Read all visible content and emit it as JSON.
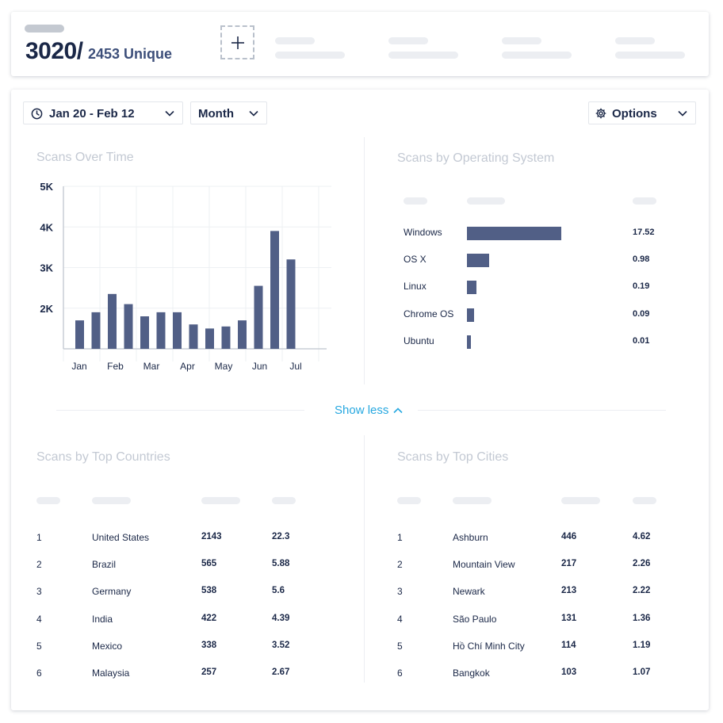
{
  "summary": {
    "total": "3020/",
    "unique": "2453 Unique"
  },
  "filters": {
    "date_range": "Jan 20 - Feb 12",
    "granularity": "Month",
    "options_label": "Options"
  },
  "scans_over_time": {
    "title": "Scans Over Time",
    "chart_data": {
      "type": "bar",
      "y_ticks": [
        "5K",
        "4K",
        "3K",
        "2K"
      ],
      "x_ticks": [
        "Jan",
        "Feb",
        "Mar",
        "Apr",
        "May",
        "Jun",
        "Jul"
      ],
      "values": [
        1700,
        1900,
        2350,
        2100,
        1800,
        1900,
        1900,
        1600,
        1500,
        1550,
        1700,
        2550,
        3900,
        3200
      ],
      "ylim": [
        1000,
        5000
      ],
      "grid": true,
      "bar_color": "#515f86"
    }
  },
  "scans_by_os": {
    "title": "Scans by Operating System",
    "chart_data": {
      "type": "bar",
      "orientation": "horizontal",
      "categories": [
        "Windows",
        "OS X",
        "Linux",
        "Chrome OS",
        "Ubuntu"
      ],
      "values": [
        17.52,
        0.98,
        0.19,
        0.09,
        0.01
      ],
      "labels": [
        "17.52",
        "0.98",
        "0.19",
        "0.09",
        "0.01"
      ],
      "bar_color": "#515f86"
    }
  },
  "show_less_label": "Show less",
  "top_countries": {
    "title": "Scans by Top Countries",
    "rows": [
      {
        "rank": "1",
        "name": "United States",
        "count": "2143",
        "pct": "22.3"
      },
      {
        "rank": "2",
        "name": "Brazil",
        "count": "565",
        "pct": "5.88"
      },
      {
        "rank": "3",
        "name": "Germany",
        "count": "538",
        "pct": "5.6"
      },
      {
        "rank": "4",
        "name": "India",
        "count": "422",
        "pct": "4.39"
      },
      {
        "rank": "5",
        "name": "Mexico",
        "count": "338",
        "pct": "3.52"
      },
      {
        "rank": "6",
        "name": "Malaysia",
        "count": "257",
        "pct": "2.67"
      }
    ]
  },
  "top_cities": {
    "title": "Scans by Top Cities",
    "rows": [
      {
        "rank": "1",
        "name": "Ashburn",
        "count": "446",
        "pct": "4.62"
      },
      {
        "rank": "2",
        "name": "Mountain View",
        "count": "217",
        "pct": "2.26"
      },
      {
        "rank": "3",
        "name": "Newark",
        "count": "213",
        "pct": "2.22"
      },
      {
        "rank": "4",
        "name": "São Paulo",
        "count": "131",
        "pct": "1.36"
      },
      {
        "rank": "5",
        "name": "Hồ Chí Minh City",
        "count": "114",
        "pct": "1.19"
      },
      {
        "rank": "6",
        "name": "Bangkok",
        "count": "103",
        "pct": "1.07"
      }
    ]
  },
  "icons": {
    "date": "clock-icon",
    "options": "gear-icon",
    "add": "plus-icon",
    "dropdown": "chevron-down-icon",
    "show_less": "chevron-up-icon"
  }
}
